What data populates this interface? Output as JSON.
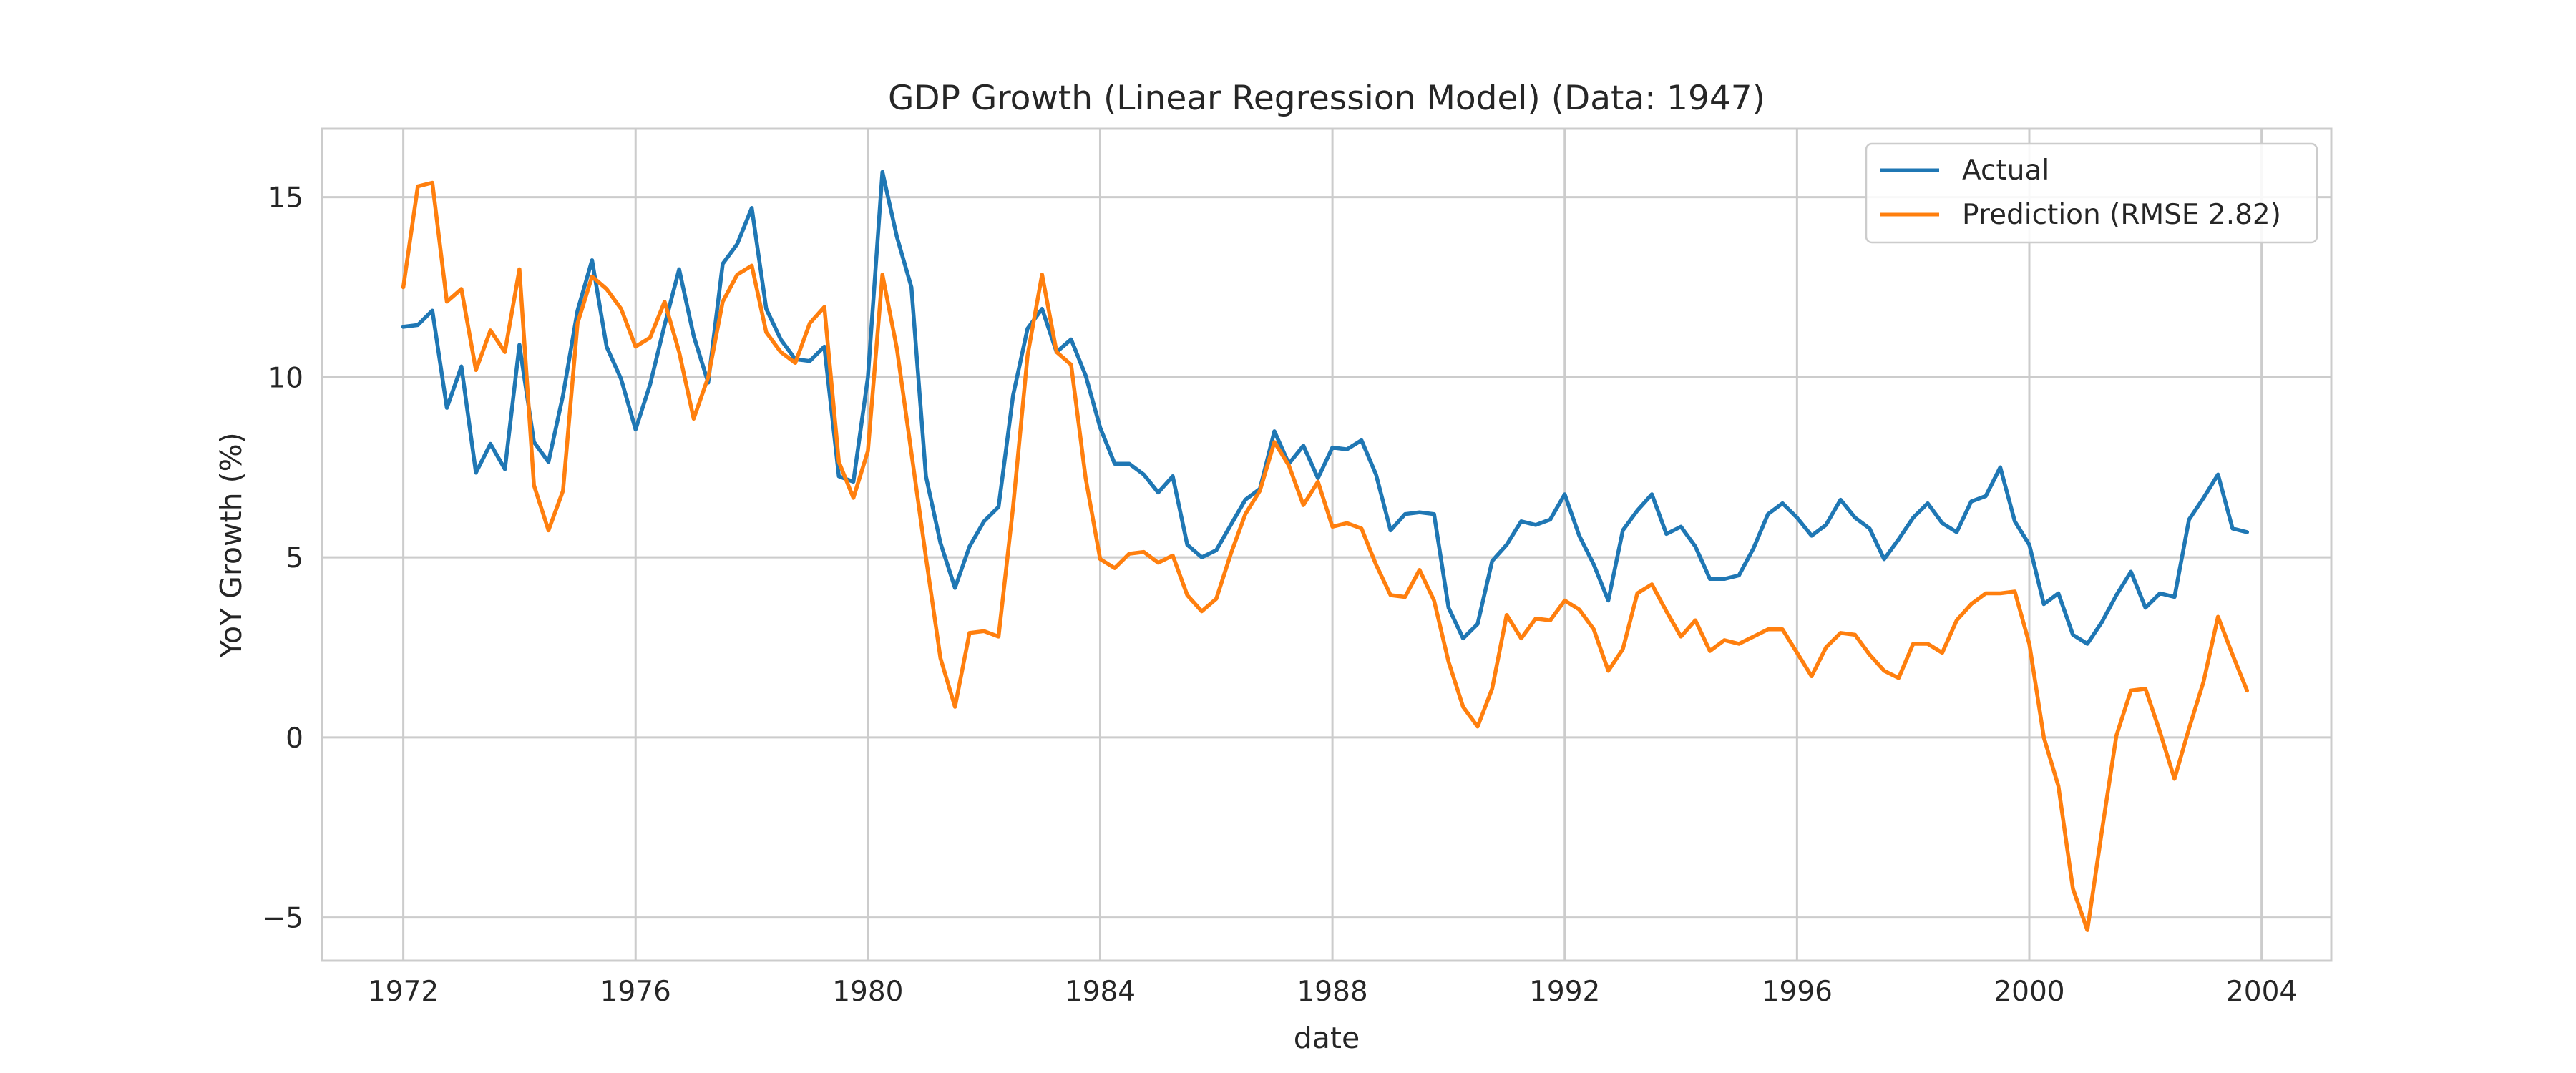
{
  "chart_data": {
    "type": "line",
    "title": "GDP Growth (Linear Regression Model) (Data: 1947)",
    "xlabel": "date",
    "ylabel": "YoY Growth (%)",
    "xlim": [
      1970.6,
      2005.2
    ],
    "ylim": [
      -6.2,
      16.9
    ],
    "xticks": [
      1972,
      1976,
      1980,
      1984,
      1988,
      1992,
      1996,
      2000,
      2004
    ],
    "xtick_labels": [
      "1972",
      "1976",
      "1980",
      "1984",
      "1988",
      "1992",
      "1996",
      "2000",
      "2004"
    ],
    "yticks": [
      -5,
      0,
      5,
      10,
      15
    ],
    "ytick_labels": [
      "−5",
      "0",
      "5",
      "10",
      "15"
    ],
    "grid": true,
    "legend_position": "top-right",
    "x_start": "1972-01-01",
    "x_step": "quarterly",
    "series": [
      {
        "name": "Actual",
        "color": "#1f77b4",
        "values": [
          11.4,
          11.45,
          11.85,
          9.15,
          10.3,
          7.35,
          8.15,
          7.45,
          10.9,
          8.2,
          7.65,
          9.5,
          11.85,
          13.25,
          10.85,
          9.95,
          8.55,
          9.8,
          11.45,
          13.0,
          11.15,
          9.85,
          13.15,
          13.7,
          14.7,
          11.9,
          11.05,
          10.5,
          10.45,
          10.85,
          7.25,
          7.1,
          10.0,
          15.7,
          13.9,
          12.5,
          7.25,
          5.4,
          4.15,
          5.3,
          6.0,
          6.4,
          9.5,
          11.35,
          11.9,
          10.7,
          11.05,
          10.05,
          8.6,
          7.6,
          7.6,
          7.3,
          6.8,
          7.25,
          5.35,
          5.0,
          5.2,
          5.9,
          6.6,
          6.9,
          8.5,
          7.6,
          8.1,
          7.2,
          8.05,
          8.0,
          8.25,
          7.3,
          5.75,
          6.2,
          6.25,
          6.2,
          3.6,
          2.75,
          3.15,
          4.9,
          5.35,
          6.0,
          5.9,
          6.05,
          6.75,
          5.6,
          4.8,
          3.8,
          5.75,
          6.3,
          6.75,
          5.65,
          5.85,
          5.3,
          4.4,
          4.4,
          4.5,
          5.25,
          6.2,
          6.5,
          6.1,
          5.6,
          5.9,
          6.6,
          6.1,
          5.8,
          4.95,
          5.5,
          6.1,
          6.5,
          5.95,
          5.7,
          6.55,
          6.7,
          7.5,
          6.0,
          5.35,
          3.7,
          4.0,
          2.85,
          2.6,
          3.2,
          3.95,
          4.6,
          3.6,
          4.0,
          3.9,
          6.05,
          6.65,
          7.3,
          5.8,
          5.7
        ]
      },
      {
        "name": "Prediction (RMSE 2.82)",
        "color": "#ff7f0e",
        "values": [
          12.5,
          15.3,
          15.4,
          12.1,
          12.45,
          10.2,
          11.3,
          10.7,
          13.0,
          7.0,
          5.75,
          6.85,
          11.5,
          12.8,
          12.45,
          11.9,
          10.85,
          11.1,
          12.1,
          10.7,
          8.85,
          10.0,
          12.1,
          12.85,
          13.1,
          11.25,
          10.7,
          10.4,
          11.5,
          11.95,
          7.65,
          6.65,
          7.95,
          12.85,
          10.8,
          7.9,
          5.0,
          2.2,
          0.85,
          2.9,
          2.95,
          2.8,
          6.4,
          10.6,
          12.85,
          10.7,
          10.35,
          7.2,
          4.95,
          4.7,
          5.1,
          5.15,
          4.85,
          5.05,
          3.95,
          3.5,
          3.85,
          5.1,
          6.2,
          6.85,
          8.2,
          7.55,
          6.45,
          7.1,
          5.85,
          5.95,
          5.8,
          4.8,
          3.95,
          3.9,
          4.65,
          3.8,
          2.1,
          0.85,
          0.3,
          1.35,
          3.4,
          2.75,
          3.3,
          3.25,
          3.8,
          3.55,
          3.0,
          1.85,
          2.45,
          4.0,
          4.25,
          3.5,
          2.8,
          3.25,
          2.4,
          2.7,
          2.6,
          2.8,
          3.0,
          3.0,
          2.35,
          1.7,
          2.5,
          2.9,
          2.85,
          2.3,
          1.85,
          1.65,
          2.6,
          2.6,
          2.35,
          3.25,
          3.7,
          4.0,
          4.0,
          4.05,
          2.6,
          0.0,
          -1.35,
          -4.2,
          -5.35,
          -2.6,
          0.05,
          1.3,
          1.35,
          0.15,
          -1.15,
          0.25,
          1.55,
          3.35,
          2.3,
          1.3
        ]
      }
    ]
  }
}
